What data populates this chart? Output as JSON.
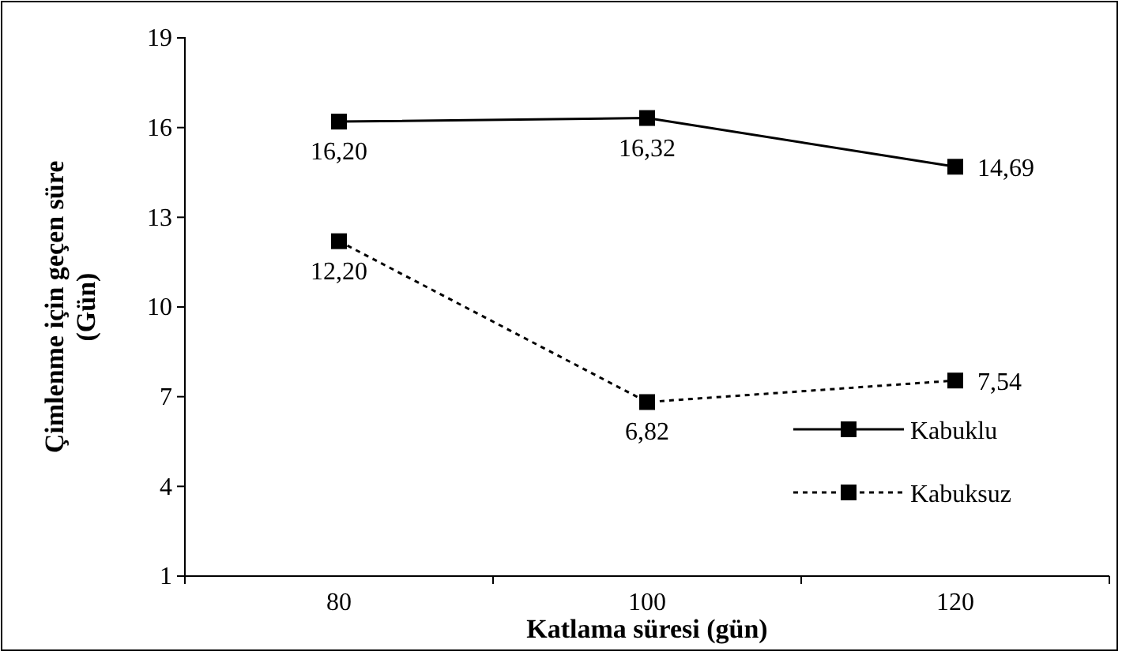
{
  "chart_data": {
    "type": "line",
    "xlabel": "Katlama süresi (gün)",
    "ylabel": "Çimlenme için geçen süre (Gün)",
    "categories": [
      "80",
      "100",
      "120"
    ],
    "series": [
      {
        "name": "Kabuklu",
        "color": "#000000",
        "values": [
          16.2,
          16.32,
          14.69
        ],
        "value_labels": [
          "16,20",
          "16,32",
          "14,69"
        ],
        "line_style": "solid"
      },
      {
        "name": "Kabuksuz",
        "color": "#000000",
        "values": [
          12.2,
          6.82,
          7.54
        ],
        "value_labels": [
          "12,20",
          "6,82",
          "7,54"
        ],
        "line_style": "dotted"
      }
    ],
    "ylim": [
      1,
      19
    ],
    "yticks": [
      1,
      4,
      7,
      10,
      13,
      16,
      19
    ],
    "marker": "square",
    "legend": "bottom right",
    "grid": false
  }
}
